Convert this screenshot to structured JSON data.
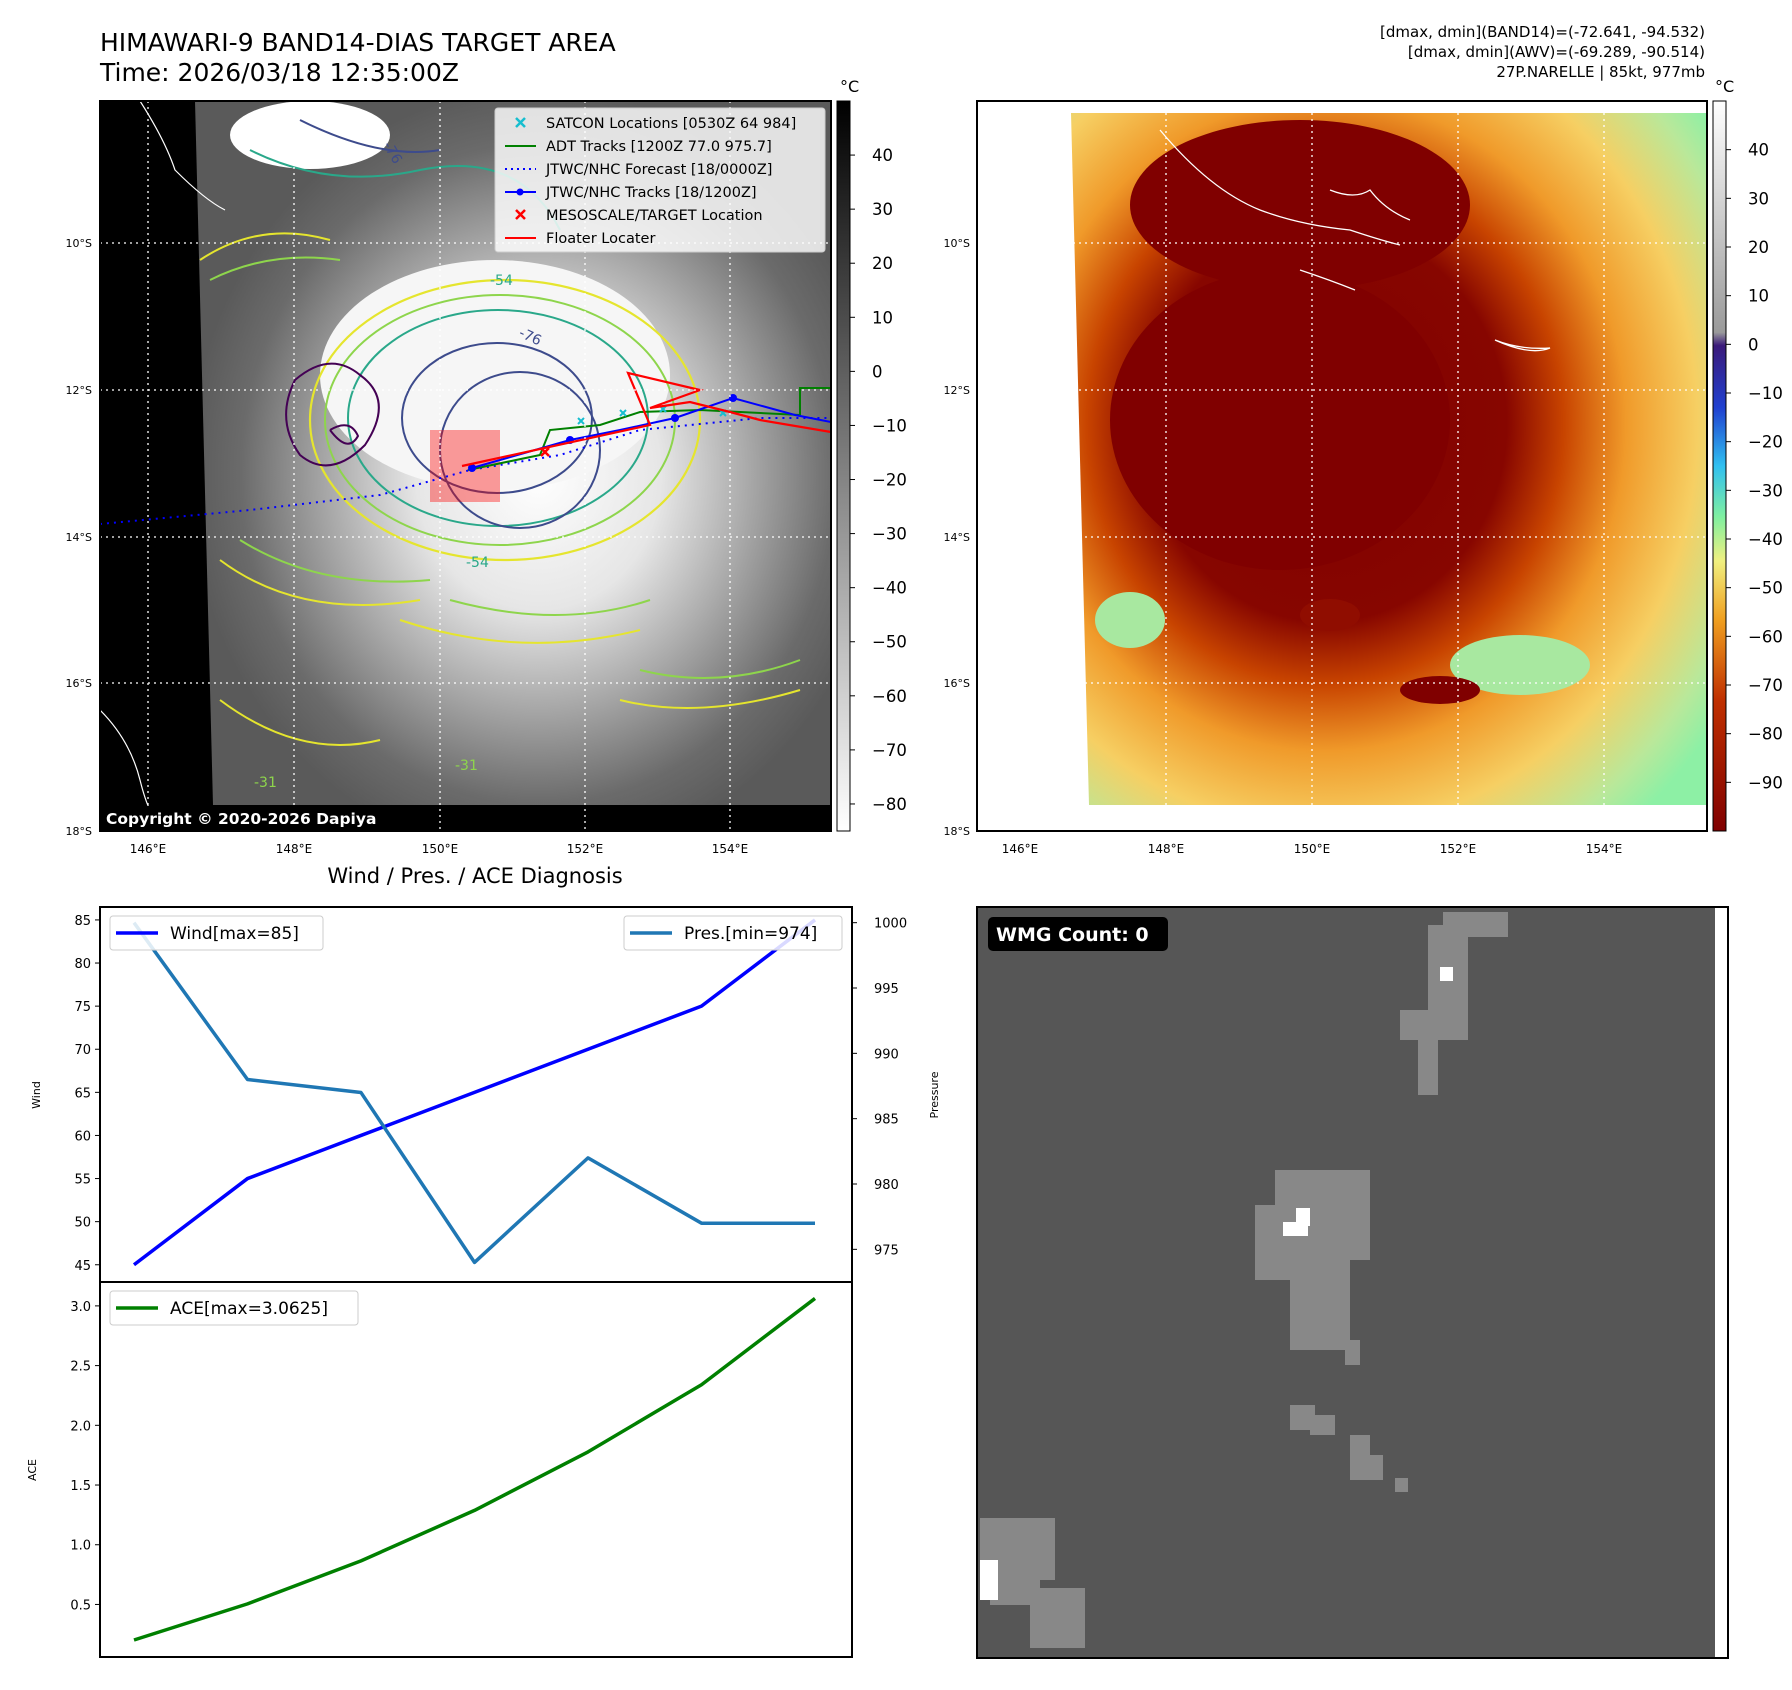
{
  "header": {
    "title": "HIMAWARI-9 BAND14-DIAS TARGET AREA",
    "time": "Time: 2026/03/18 12:35:00Z",
    "meta_band14": "[dmax, dmin](BAND14)=(-72.641, -94.532)",
    "meta_awv": "[dmax, dmin](AWV)=(-69.289, -90.514)",
    "meta_storm": "27P.NARELLE | 85kt, 977mb"
  },
  "map_panel": {
    "lat_labels": [
      "10°S",
      "12°S",
      "14°S",
      "16°S",
      "18°S"
    ],
    "lon_labels": [
      "146°E",
      "148°E",
      "150°E",
      "152°E",
      "154°E"
    ],
    "copyright": "Copyright © 2020-2026 Dapiya",
    "legend": [
      {
        "label": "SATCON Locations [0530Z 64 984]",
        "color": "#17becf",
        "marker": "x"
      },
      {
        "label": "ADT Tracks [1200Z 77.0 975.7]",
        "color": "#008000",
        "marker": "line"
      },
      {
        "label": "JTWC/NHC Forecast [18/0000Z]",
        "color": "#0000ff",
        "marker": "dotted"
      },
      {
        "label": "JTWC/NHC Tracks [18/1200Z]",
        "color": "#0000ff",
        "marker": "line-dot"
      },
      {
        "label": "MESOSCALE/TARGET Location",
        "color": "#ff0000",
        "marker": "x"
      },
      {
        "label": "Floater Locater",
        "color": "#ff0000",
        "marker": "line"
      }
    ],
    "contour_labels": [
      "-76",
      "-76",
      "-54",
      "-54",
      "-31",
      "-31"
    ],
    "colorbar": {
      "unit": "°C",
      "ticks": [
        "40",
        "30",
        "20",
        "10",
        "0",
        "−10",
        "−20",
        "−30",
        "−40",
        "−50",
        "−60",
        "−70",
        "−80"
      ],
      "range": [
        -85,
        50
      ]
    }
  },
  "awv_panel": {
    "lat_labels": [
      "10°S",
      "12°S",
      "14°S",
      "16°S",
      "18°S"
    ],
    "lon_labels": [
      "146°E",
      "148°E",
      "150°E",
      "152°E",
      "154°E"
    ],
    "colorbar": {
      "unit": "°C",
      "ticks": [
        "40",
        "30",
        "20",
        "10",
        "0",
        "−10",
        "−20",
        "−30",
        "−40",
        "−50",
        "−60",
        "−70",
        "−80",
        "−90"
      ],
      "range": [
        -100,
        50
      ]
    }
  },
  "diagnosis": {
    "title": "Wind / Pres. / ACE Diagnosis",
    "wind_ylabel": "Wind",
    "pres_ylabel": "Pressure",
    "ace_ylabel": "ACE",
    "wind_legend": "Wind[max=85]",
    "pres_legend": "Pres.[min=974]",
    "ace_legend": "ACE[max=3.0625]"
  },
  "wmg_panel": {
    "badge": "WMG Count: 0"
  },
  "chart_data": [
    {
      "type": "line",
      "title": "Wind / Pres. / ACE Diagnosis",
      "ylabel": "Wind",
      "ylim": [
        43,
        86.5
      ],
      "yticks": [
        45,
        50,
        55,
        60,
        65,
        70,
        75,
        80,
        85
      ],
      "series": [
        {
          "name": "Wind[max=85]",
          "color": "#0000ff",
          "values": [
            45,
            55,
            60,
            65,
            70,
            75,
            85
          ]
        }
      ]
    },
    {
      "type": "line",
      "ylabel": "Pressure",
      "ylim": [
        972.5,
        1001.2
      ],
      "yticks": [
        975,
        980,
        985,
        990,
        995,
        1000
      ],
      "series": [
        {
          "name": "Pres.[min=974]",
          "color": "#1f77b4",
          "values": [
            1000,
            988,
            987,
            974,
            982,
            977,
            977
          ]
        }
      ]
    },
    {
      "type": "line",
      "ylabel": "ACE",
      "ylim": [
        0.06,
        3.2
      ],
      "yticks": [
        0.5,
        1.0,
        1.5,
        2.0,
        2.5,
        3.0
      ],
      "series": [
        {
          "name": "ACE[max=3.0625]",
          "color": "#008000",
          "values": [
            0.2025,
            0.505,
            0.865,
            1.2875,
            1.7775,
            2.34,
            3.0625
          ]
        }
      ]
    }
  ]
}
